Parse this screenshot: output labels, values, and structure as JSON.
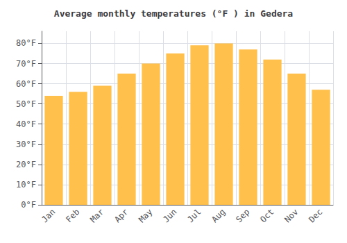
{
  "chart_data": {
    "type": "bar",
    "title": "Average monthly temperatures (°F ) in Gedera",
    "categories": [
      "Jan",
      "Feb",
      "Mar",
      "Apr",
      "May",
      "Jun",
      "Jul",
      "Aug",
      "Sep",
      "Oct",
      "Nov",
      "Dec"
    ],
    "values": [
      54,
      56,
      59,
      65,
      70,
      75,
      79,
      80,
      77,
      72,
      65,
      57
    ],
    "color": "#FFC04C",
    "ylim": [
      0,
      86
    ],
    "yticks": [
      {
        "value": 0,
        "label": "0°F"
      },
      {
        "value": 10,
        "label": "10°F"
      },
      {
        "value": 20,
        "label": "20°F"
      },
      {
        "value": 30,
        "label": "30°F"
      },
      {
        "value": 40,
        "label": "40°F"
      },
      {
        "value": 50,
        "label": "50°F"
      },
      {
        "value": 60,
        "label": "60°F"
      },
      {
        "value": 70,
        "label": "70°F"
      },
      {
        "value": 80,
        "label": "80°F"
      }
    ],
    "grid": true
  }
}
